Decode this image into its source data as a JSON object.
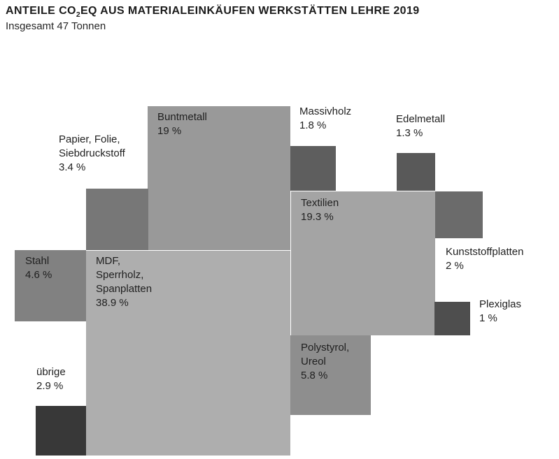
{
  "header": {
    "title_prefix": "ANTEILE CO",
    "title_subscript": "2",
    "title_suffix": "EQ AUS MATERIALEINKÄUFEN WERKSTÄTTEN LEHRE 2019",
    "subtitle": "Insgesamt 47 Tonnen"
  },
  "chart_data": {
    "type": "pie",
    "variant": "proportional-area-squares",
    "title": "ANTEILE CO2EQ AUS MATERIALEINKÄUFEN WERKSTÄTTEN LEHRE 2019",
    "subtitle": "Insgesamt 47 Tonnen",
    "total_tonnes": 47,
    "unit": "%",
    "legend_position": "labels-on-or-near-squares",
    "grid": false,
    "categories": [
      "MDF, Sperrholz, Spanplatten",
      "Textilien",
      "Buntmetall",
      "Polystyrol, Ureol",
      "Stahl",
      "Papier, Folie, Siebdruckstoff",
      "übrige",
      "Kunststoffplatten",
      "Massivholz",
      "Edelmetall",
      "Plexiglas"
    ],
    "values": [
      38.9,
      19.3,
      19,
      5.8,
      4.6,
      3.4,
      2.9,
      2,
      1.8,
      1.3,
      1
    ],
    "items": [
      {
        "key": "mdf",
        "name": "MDF, Sperrholz, Spanplatten",
        "value_pct": 38.9,
        "color": "#aeaeae",
        "label_lines": [
          "MDF,",
          "Sperrholz,",
          "Spanplatten",
          "38.9 %"
        ],
        "label_placement": "inside-top-left"
      },
      {
        "key": "textilien",
        "name": "Textilien",
        "value_pct": 19.3,
        "color": "#a4a4a4",
        "label_lines": [
          "Textilien",
          "19.3 %"
        ],
        "label_placement": "inside-top-left"
      },
      {
        "key": "buntmetall",
        "name": "Buntmetall",
        "value_pct": 19,
        "color": "#999999",
        "label_lines": [
          "Buntmetall",
          "19 %"
        ],
        "label_placement": "inside-top-left"
      },
      {
        "key": "polystyrol",
        "name": "Polystyrol, Ureol",
        "value_pct": 5.8,
        "color": "#8e8e8e",
        "label_lines": [
          "Polystyrol,",
          "Ureol",
          "5.8 %"
        ],
        "label_placement": "inside-top-left"
      },
      {
        "key": "stahl",
        "name": "Stahl",
        "value_pct": 4.6,
        "color": "#818181",
        "label_lines": [
          "Stahl",
          "4.6 %"
        ],
        "label_placement": "inside-top-left"
      },
      {
        "key": "papier",
        "name": "Papier, Folie, Siebdruckstoff",
        "value_pct": 3.4,
        "color": "#777777",
        "label_lines": [
          "Papier, Folie,",
          "Siebdruckstoff",
          "3.4 %"
        ],
        "label_placement": "outside-above-left"
      },
      {
        "key": "uebrige",
        "name": "übrige",
        "value_pct": 2.9,
        "color": "#383838",
        "label_lines": [
          "übrige",
          "2.9 %"
        ],
        "label_placement": "outside-above"
      },
      {
        "key": "kunststoffplatten",
        "name": "Kunststoffplatten",
        "value_pct": 2,
        "color": "#6b6b6b",
        "label_lines": [
          "Kunststoffplatten",
          "2 %"
        ],
        "label_placement": "outside-below"
      },
      {
        "key": "massivholz",
        "name": "Massivholz",
        "value_pct": 1.8,
        "color": "#5e5e5e",
        "label_lines": [
          "Massivholz",
          "1.8 %"
        ],
        "label_placement": "outside-above"
      },
      {
        "key": "edelmetall",
        "name": "Edelmetall",
        "value_pct": 1.3,
        "color": "#595959",
        "label_lines": [
          "Edelmetall",
          "1.3 %"
        ],
        "label_placement": "outside-above"
      },
      {
        "key": "plexiglas",
        "name": "Plexiglas",
        "value_pct": 1,
        "color": "#4e4e4e",
        "label_lines": [
          "Plexiglas",
          "1 %"
        ],
        "label_placement": "outside-right"
      }
    ]
  }
}
